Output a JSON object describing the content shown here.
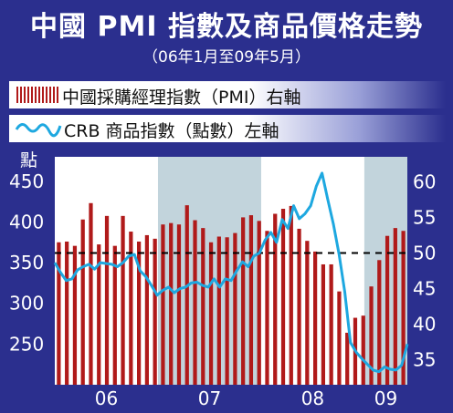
{
  "title": "中國 PMI 指數及商品價格走勢",
  "subtitle": "（06年1月至09年5月）",
  "legend": {
    "pmi_label": "中國採購經理指數（PMI）右軸",
    "crb_label": "CRB 商品指數（點數）左軸"
  },
  "colors": {
    "background": "#2b2f8e",
    "plot_white": "#ffffff",
    "plot_band": "#c2d4dc",
    "bar": "#b01a1a",
    "line": "#1ea8e0",
    "threshold": "#000000"
  },
  "chart_data": {
    "type": "bar+line",
    "left_axis": {
      "unit_label": "點",
      "ticks": [
        250,
        300,
        350,
        400,
        450
      ],
      "range": [
        200,
        480
      ]
    },
    "right_axis": {
      "ticks": [
        35,
        40,
        45,
        50,
        55,
        60
      ],
      "range": [
        31.5,
        63.5
      ]
    },
    "x_labels": [
      "06",
      "07",
      "08",
      "09"
    ],
    "threshold": 50,
    "shaded_periods": [
      "07",
      "09"
    ],
    "series": [
      {
        "name": "中國採購經理指數（PMI）",
        "axis": "right",
        "type": "bar",
        "values": [
          51.5,
          51.6,
          51.0,
          54.7,
          57.0,
          51.2,
          55.2,
          51.0,
          55.2,
          53.0,
          51.6,
          52.5,
          52.0,
          54.0,
          54.2,
          54.0,
          56.7,
          54.6,
          53.5,
          51.5,
          52.3,
          52.2,
          52.8,
          55.0,
          55.3,
          54.5,
          53.1,
          55.5,
          56.2,
          56.6,
          53.4,
          51.7,
          50.2,
          48.4,
          48.4,
          44.6,
          38.8,
          40.9,
          41.2,
          45.3,
          49.0,
          52.4,
          53.5,
          53.1
        ]
      },
      {
        "name": "CRB 商品指數",
        "axis": "left",
        "type": "line",
        "values": [
          350,
          338,
          328,
          330,
          341,
          345,
          348,
          342,
          350,
          349,
          348,
          345,
          350,
          358,
          360,
          340,
          333,
          322,
          310,
          316,
          320,
          313,
          318,
          320,
          325,
          326,
          322,
          320,
          330,
          320,
          330,
          328,
          340,
          351,
          345,
          358,
          362,
          378,
          387,
          375,
          403,
          392,
          420,
          404,
          410,
          420,
          444,
          460,
          428,
          397,
          360,
          314,
          252,
          240,
          232,
          225,
          218,
          216,
          222,
          219,
          218,
          224,
          250
        ]
      }
    ]
  }
}
